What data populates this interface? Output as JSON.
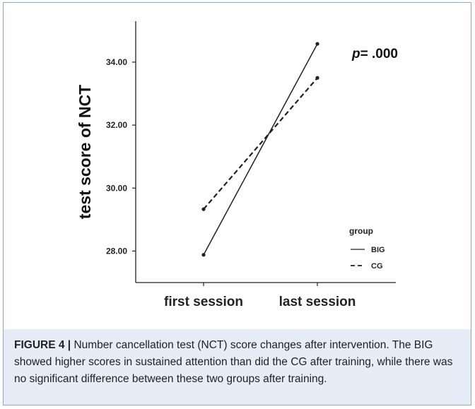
{
  "chart_data": {
    "type": "line",
    "categories": [
      "first session",
      "last session"
    ],
    "series": [
      {
        "name": "BIG",
        "values": [
          27.88,
          34.58
        ],
        "style": "solid"
      },
      {
        "name": "CG",
        "values": [
          29.33,
          33.5
        ],
        "style": "dashed"
      }
    ],
    "ylabel": "test score of NCT",
    "ylim": [
      27.0,
      35.3
    ],
    "yticks": [
      "28.00",
      "30.00",
      "32.00",
      "34.00"
    ],
    "annotation": {
      "italic": "p",
      "rest": "= .000"
    },
    "legend_title": "group",
    "legend_position": "bottom-right",
    "grid": false,
    "line_color": "#222222"
  },
  "caption": {
    "label": "FIGURE 4",
    "separator": "|",
    "text": " Number cancellation test (NCT) score changes after intervention. The BIG showed higher scores in sustained attention than did the CG after training, while there was no significant difference between these two groups after training."
  }
}
